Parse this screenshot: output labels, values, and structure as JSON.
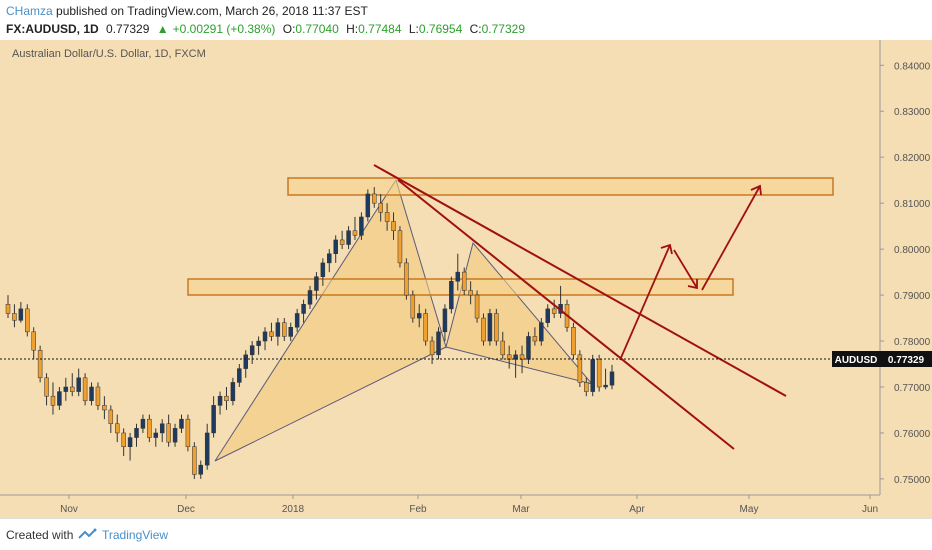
{
  "header": {
    "author": "CHamza",
    "published_text": "published on TradingView.com, March 26, 2018 11:37 EST",
    "symbol": "FX:AUDUSD, 1D",
    "last": "0.77329",
    "change": "+0.00291 (+0.38%)",
    "open_label": "O:",
    "open": "0.77040",
    "high_label": "H:",
    "high": "0.77484",
    "low_label": "L:",
    "low": "0.76954",
    "close_label": "C:",
    "close": "0.77329"
  },
  "chart_data": {
    "type": "candlestick",
    "title": "Australian Dollar/U.S. Dollar, 1D, FXCM",
    "x_ticks": [
      "Nov",
      "Dec",
      "2018",
      "Feb",
      "Mar",
      "Apr",
      "May",
      "Jun"
    ],
    "y_ticks": [
      "0.84000",
      "0.83000",
      "0.82000",
      "0.81000",
      "0.80000",
      "0.79000",
      "0.78000",
      "0.77000",
      "0.76000",
      "0.75000"
    ],
    "ylim": [
      0.7465,
      0.8455
    ],
    "current_price_label": "AUDUSD",
    "current_price": "0.77329",
    "colors": {
      "background": "#f5deb3",
      "up_candle": "#1f3a5f",
      "down_candle": "#f0a030",
      "pattern_fill": "#f0c878",
      "pattern_line": "#5a5a7a",
      "trendline": "#a01010",
      "zone": "#c87820"
    },
    "candles": [
      {
        "o": 0.788,
        "h": 0.79,
        "l": 0.785,
        "c": 0.786
      },
      {
        "o": 0.786,
        "h": 0.788,
        "l": 0.783,
        "c": 0.7845
      },
      {
        "o": 0.7845,
        "h": 0.7885,
        "l": 0.784,
        "c": 0.787
      },
      {
        "o": 0.787,
        "h": 0.788,
        "l": 0.781,
        "c": 0.782
      },
      {
        "o": 0.782,
        "h": 0.783,
        "l": 0.776,
        "c": 0.778
      },
      {
        "o": 0.778,
        "h": 0.779,
        "l": 0.771,
        "c": 0.772
      },
      {
        "o": 0.772,
        "h": 0.773,
        "l": 0.766,
        "c": 0.768
      },
      {
        "o": 0.768,
        "h": 0.771,
        "l": 0.764,
        "c": 0.766
      },
      {
        "o": 0.766,
        "h": 0.77,
        "l": 0.765,
        "c": 0.769
      },
      {
        "o": 0.769,
        "h": 0.772,
        "l": 0.767,
        "c": 0.77
      },
      {
        "o": 0.77,
        "h": 0.773,
        "l": 0.768,
        "c": 0.769
      },
      {
        "o": 0.769,
        "h": 0.774,
        "l": 0.768,
        "c": 0.772
      },
      {
        "o": 0.772,
        "h": 0.773,
        "l": 0.766,
        "c": 0.767
      },
      {
        "o": 0.767,
        "h": 0.771,
        "l": 0.766,
        "c": 0.77
      },
      {
        "o": 0.77,
        "h": 0.771,
        "l": 0.765,
        "c": 0.766
      },
      {
        "o": 0.766,
        "h": 0.768,
        "l": 0.763,
        "c": 0.765
      },
      {
        "o": 0.765,
        "h": 0.766,
        "l": 0.76,
        "c": 0.762
      },
      {
        "o": 0.762,
        "h": 0.764,
        "l": 0.758,
        "c": 0.76
      },
      {
        "o": 0.76,
        "h": 0.761,
        "l": 0.755,
        "c": 0.757
      },
      {
        "o": 0.757,
        "h": 0.76,
        "l": 0.754,
        "c": 0.759
      },
      {
        "o": 0.759,
        "h": 0.762,
        "l": 0.757,
        "c": 0.761
      },
      {
        "o": 0.761,
        "h": 0.764,
        "l": 0.76,
        "c": 0.763
      },
      {
        "o": 0.763,
        "h": 0.764,
        "l": 0.758,
        "c": 0.759
      },
      {
        "o": 0.759,
        "h": 0.761,
        "l": 0.757,
        "c": 0.76
      },
      {
        "o": 0.76,
        "h": 0.763,
        "l": 0.758,
        "c": 0.762
      },
      {
        "o": 0.762,
        "h": 0.764,
        "l": 0.757,
        "c": 0.758
      },
      {
        "o": 0.758,
        "h": 0.762,
        "l": 0.757,
        "c": 0.761
      },
      {
        "o": 0.761,
        "h": 0.764,
        "l": 0.76,
        "c": 0.763
      },
      {
        "o": 0.763,
        "h": 0.764,
        "l": 0.756,
        "c": 0.757
      },
      {
        "o": 0.757,
        "h": 0.758,
        "l": 0.75,
        "c": 0.751
      },
      {
        "o": 0.751,
        "h": 0.754,
        "l": 0.75,
        "c": 0.753
      },
      {
        "o": 0.753,
        "h": 0.762,
        "l": 0.752,
        "c": 0.76
      },
      {
        "o": 0.76,
        "h": 0.768,
        "l": 0.759,
        "c": 0.766
      },
      {
        "o": 0.766,
        "h": 0.769,
        "l": 0.764,
        "c": 0.768
      },
      {
        "o": 0.768,
        "h": 0.77,
        "l": 0.765,
        "c": 0.767
      },
      {
        "o": 0.767,
        "h": 0.772,
        "l": 0.766,
        "c": 0.771
      },
      {
        "o": 0.771,
        "h": 0.775,
        "l": 0.77,
        "c": 0.774
      },
      {
        "o": 0.774,
        "h": 0.778,
        "l": 0.772,
        "c": 0.777
      },
      {
        "o": 0.777,
        "h": 0.78,
        "l": 0.775,
        "c": 0.779
      },
      {
        "o": 0.779,
        "h": 0.781,
        "l": 0.777,
        "c": 0.78
      },
      {
        "o": 0.78,
        "h": 0.783,
        "l": 0.778,
        "c": 0.782
      },
      {
        "o": 0.782,
        "h": 0.784,
        "l": 0.78,
        "c": 0.781
      },
      {
        "o": 0.781,
        "h": 0.785,
        "l": 0.779,
        "c": 0.784
      },
      {
        "o": 0.784,
        "h": 0.785,
        "l": 0.78,
        "c": 0.781
      },
      {
        "o": 0.781,
        "h": 0.784,
        "l": 0.78,
        "c": 0.783
      },
      {
        "o": 0.783,
        "h": 0.787,
        "l": 0.782,
        "c": 0.786
      },
      {
        "o": 0.786,
        "h": 0.789,
        "l": 0.784,
        "c": 0.788
      },
      {
        "o": 0.788,
        "h": 0.792,
        "l": 0.787,
        "c": 0.791
      },
      {
        "o": 0.791,
        "h": 0.795,
        "l": 0.789,
        "c": 0.794
      },
      {
        "o": 0.794,
        "h": 0.798,
        "l": 0.792,
        "c": 0.797
      },
      {
        "o": 0.797,
        "h": 0.8,
        "l": 0.795,
        "c": 0.799
      },
      {
        "o": 0.799,
        "h": 0.803,
        "l": 0.797,
        "c": 0.802
      },
      {
        "o": 0.802,
        "h": 0.804,
        "l": 0.8,
        "c": 0.801
      },
      {
        "o": 0.801,
        "h": 0.805,
        "l": 0.8,
        "c": 0.804
      },
      {
        "o": 0.804,
        "h": 0.807,
        "l": 0.802,
        "c": 0.803
      },
      {
        "o": 0.803,
        "h": 0.808,
        "l": 0.802,
        "c": 0.807
      },
      {
        "o": 0.807,
        "h": 0.813,
        "l": 0.806,
        "c": 0.812
      },
      {
        "o": 0.812,
        "h": 0.8135,
        "l": 0.809,
        "c": 0.81
      },
      {
        "o": 0.81,
        "h": 0.812,
        "l": 0.806,
        "c": 0.808
      },
      {
        "o": 0.808,
        "h": 0.81,
        "l": 0.804,
        "c": 0.806
      },
      {
        "o": 0.806,
        "h": 0.808,
        "l": 0.802,
        "c": 0.804
      },
      {
        "o": 0.804,
        "h": 0.805,
        "l": 0.796,
        "c": 0.797
      },
      {
        "o": 0.797,
        "h": 0.798,
        "l": 0.789,
        "c": 0.79
      },
      {
        "o": 0.79,
        "h": 0.791,
        "l": 0.784,
        "c": 0.785
      },
      {
        "o": 0.785,
        "h": 0.788,
        "l": 0.783,
        "c": 0.786
      },
      {
        "o": 0.786,
        "h": 0.787,
        "l": 0.779,
        "c": 0.78
      },
      {
        "o": 0.78,
        "h": 0.781,
        "l": 0.775,
        "c": 0.777
      },
      {
        "o": 0.777,
        "h": 0.783,
        "l": 0.776,
        "c": 0.782
      },
      {
        "o": 0.782,
        "h": 0.788,
        "l": 0.78,
        "c": 0.787
      },
      {
        "o": 0.787,
        "h": 0.794,
        "l": 0.786,
        "c": 0.793
      },
      {
        "o": 0.793,
        "h": 0.799,
        "l": 0.791,
        "c": 0.795
      },
      {
        "o": 0.795,
        "h": 0.796,
        "l": 0.79,
        "c": 0.791
      },
      {
        "o": 0.791,
        "h": 0.793,
        "l": 0.788,
        "c": 0.79
      },
      {
        "o": 0.79,
        "h": 0.791,
        "l": 0.784,
        "c": 0.785
      },
      {
        "o": 0.785,
        "h": 0.786,
        "l": 0.779,
        "c": 0.78
      },
      {
        "o": 0.78,
        "h": 0.787,
        "l": 0.779,
        "c": 0.786
      },
      {
        "o": 0.786,
        "h": 0.787,
        "l": 0.779,
        "c": 0.78
      },
      {
        "o": 0.78,
        "h": 0.782,
        "l": 0.776,
        "c": 0.777
      },
      {
        "o": 0.777,
        "h": 0.779,
        "l": 0.774,
        "c": 0.776
      },
      {
        "o": 0.776,
        "h": 0.778,
        "l": 0.772,
        "c": 0.777
      },
      {
        "o": 0.777,
        "h": 0.779,
        "l": 0.773,
        "c": 0.776
      },
      {
        "o": 0.776,
        "h": 0.782,
        "l": 0.775,
        "c": 0.781
      },
      {
        "o": 0.781,
        "h": 0.783,
        "l": 0.779,
        "c": 0.78
      },
      {
        "o": 0.78,
        "h": 0.785,
        "l": 0.779,
        "c": 0.784
      },
      {
        "o": 0.784,
        "h": 0.788,
        "l": 0.783,
        "c": 0.787
      },
      {
        "o": 0.787,
        "h": 0.789,
        "l": 0.785,
        "c": 0.786
      },
      {
        "o": 0.786,
        "h": 0.792,
        "l": 0.785,
        "c": 0.788
      },
      {
        "o": 0.788,
        "h": 0.789,
        "l": 0.782,
        "c": 0.783
      },
      {
        "o": 0.783,
        "h": 0.784,
        "l": 0.776,
        "c": 0.777
      },
      {
        "o": 0.777,
        "h": 0.778,
        "l": 0.77,
        "c": 0.771
      },
      {
        "o": 0.771,
        "h": 0.772,
        "l": 0.768,
        "c": 0.769
      },
      {
        "o": 0.769,
        "h": 0.777,
        "l": 0.768,
        "c": 0.776
      },
      {
        "o": 0.776,
        "h": 0.777,
        "l": 0.769,
        "c": 0.77
      },
      {
        "o": 0.77,
        "h": 0.774,
        "l": 0.7695,
        "c": 0.7704
      },
      {
        "o": 0.7704,
        "h": 0.7748,
        "l": 0.7695,
        "c": 0.7733
      }
    ]
  }
}
